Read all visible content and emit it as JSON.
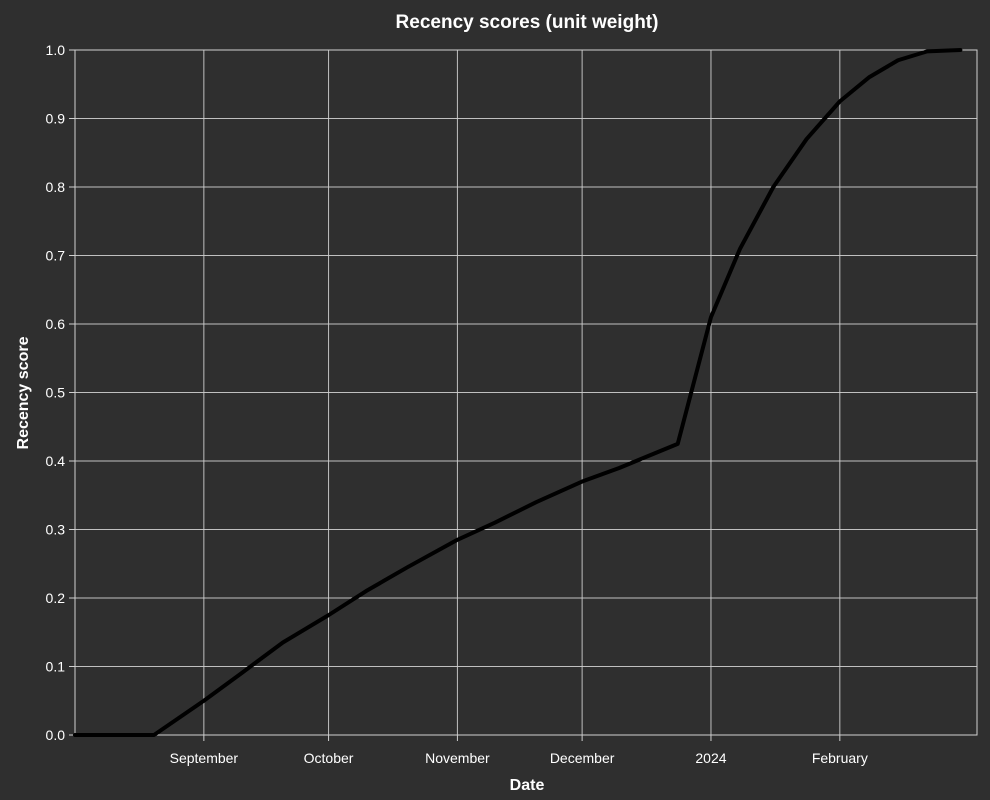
{
  "chart_data": {
    "type": "line",
    "title": "Recency scores (unit weight)",
    "xlabel": "Date",
    "ylabel": "Recency score",
    "x_range": [
      "2023-08-01",
      "2024-03-05"
    ],
    "ylim": [
      0,
      1
    ],
    "x_ticks": [
      {
        "date": "2023-09-01",
        "label": "September"
      },
      {
        "date": "2023-10-01",
        "label": "October"
      },
      {
        "date": "2023-11-01",
        "label": "November"
      },
      {
        "date": "2023-12-01",
        "label": "December"
      },
      {
        "date": "2024-01-01",
        "label": "2024"
      },
      {
        "date": "2024-02-01",
        "label": "February"
      }
    ],
    "y_ticks": [
      0,
      0.1,
      0.2,
      0.3,
      0.4,
      0.5,
      0.6,
      0.7,
      0.8,
      0.9,
      1.0
    ],
    "y_tick_labels": [
      "0.0",
      "0.1",
      "0.2",
      "0.3",
      "0.4",
      "0.5",
      "0.6",
      "0.7",
      "0.8",
      "0.9",
      "1.0"
    ],
    "grid": true,
    "series": [
      {
        "color": "#000000",
        "x": [
          "2023-08-01",
          "2023-08-20",
          "2023-09-01",
          "2023-09-10",
          "2023-09-20",
          "2023-10-01",
          "2023-10-10",
          "2023-10-20",
          "2023-11-01",
          "2023-11-10",
          "2023-11-20",
          "2023-12-01",
          "2023-12-10",
          "2023-12-18",
          "2023-12-24",
          "2024-01-01",
          "2024-01-08",
          "2024-01-16",
          "2024-01-24",
          "2024-02-01",
          "2024-02-08",
          "2024-02-15",
          "2024-02-22",
          "2024-03-01"
        ],
        "y": [
          0.0,
          0.0,
          0.05,
          0.09,
          0.135,
          0.175,
          0.21,
          0.245,
          0.285,
          0.31,
          0.34,
          0.37,
          0.39,
          0.41,
          0.425,
          0.61,
          0.71,
          0.8,
          0.87,
          0.925,
          0.96,
          0.985,
          0.998,
          1.0
        ]
      }
    ]
  }
}
